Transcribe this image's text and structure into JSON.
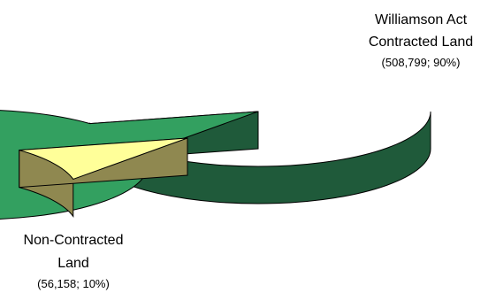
{
  "chart_data": {
    "type": "pie",
    "title": "",
    "style": "3d-exploded",
    "slices": [
      {
        "label": [
          "Williamson Act",
          "Contracted Land"
        ],
        "value_text": "(508,799; 90%)",
        "value": 508799,
        "percent": 90,
        "color": "#33a060",
        "side_color": "#1f5a3a"
      },
      {
        "label": [
          "Non-Contracted",
          "Land"
        ],
        "value_text": "(56,158; 10%)",
        "value": 56158,
        "percent": 10,
        "color": "#ffff99",
        "side_color": "#8f8850",
        "exploded": true
      }
    ]
  }
}
